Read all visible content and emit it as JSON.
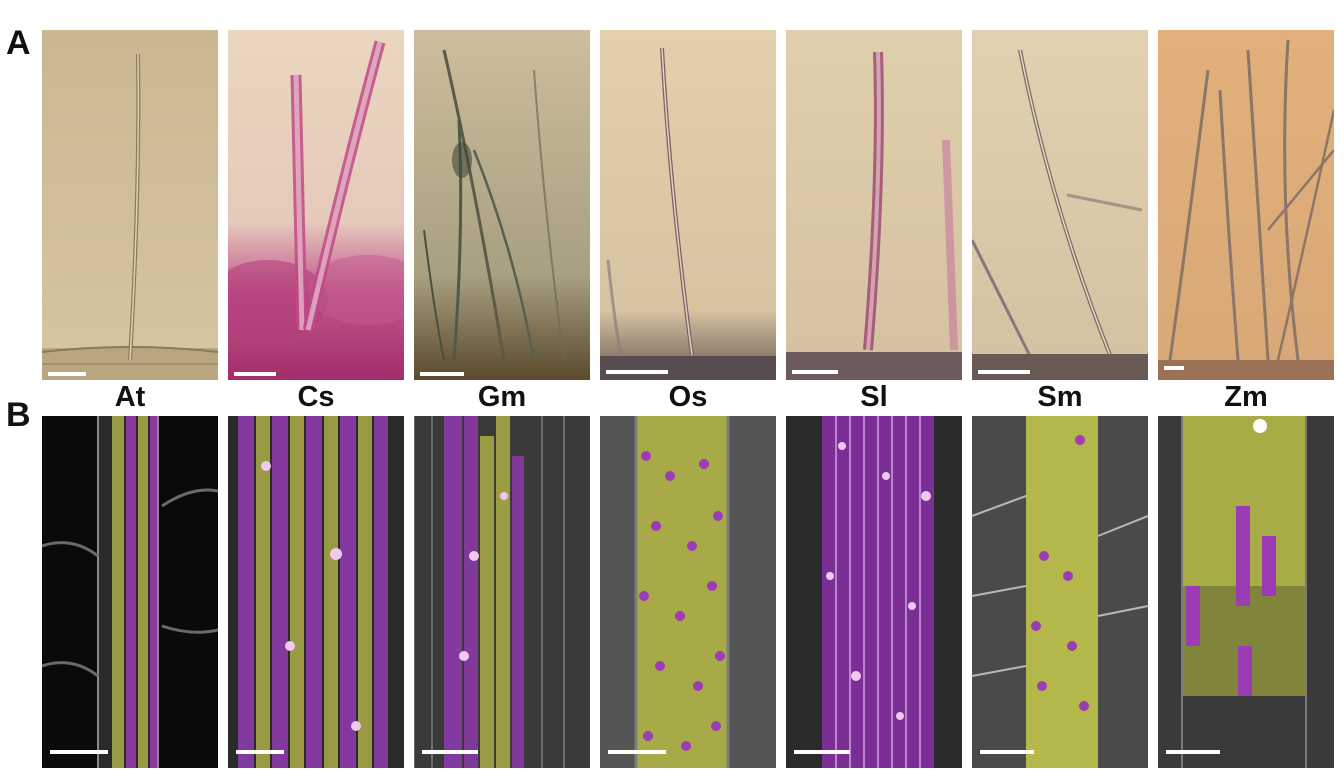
{
  "figure": {
    "panel_a_label": "A",
    "panel_b_label": "B"
  },
  "species": [
    {
      "code": "At"
    },
    {
      "code": "Cs"
    },
    {
      "code": "Gm"
    },
    {
      "code": "Os"
    },
    {
      "code": "Sl"
    },
    {
      "code": "Sm"
    },
    {
      "code": "Zm"
    }
  ],
  "colors": {
    "bright_field_background": "#d9c9a4",
    "anthocyanin_pink": "#b03a78",
    "hair_cell_magenta": "#a43fc4",
    "non_hair_cell_yellow": "#c9cc4a",
    "fluorescence_background": "#1a1a1a",
    "scale_bar": "#ffffff"
  }
}
